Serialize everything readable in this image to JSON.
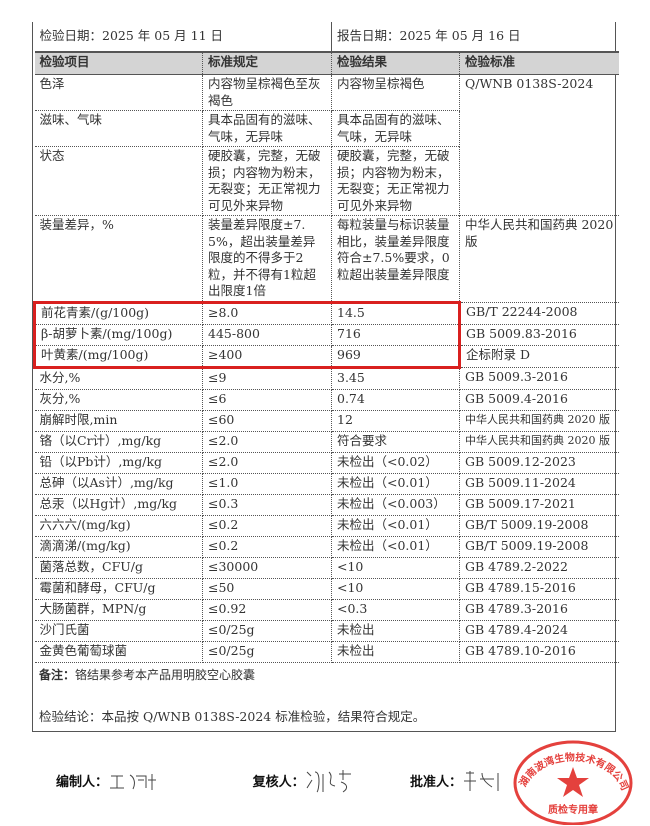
{
  "header": {
    "inspect_date": "检验日期：2025 年 05 月 11 日",
    "report_date": "报告日期：2025 年 05 月 16 日"
  },
  "columns": [
    "检验项目",
    "标准规定",
    "检验结果",
    "检验标准"
  ],
  "rows": [
    {
      "item": "色泽",
      "spec": "内容物呈棕褐色至灰褐色",
      "result": "内容物呈棕褐色",
      "standard": "Q/WNB 0138S-2024"
    },
    {
      "item": "滋味、气味",
      "spec": "具本品固有的滋味、气味，无异味",
      "result": "具本品固有的滋味、气味，无异味",
      "standard": ""
    },
    {
      "item": "状态",
      "spec": "硬胶囊，完整，无破损；内容物为粉末，无裂变；无正常视力可见外来异物",
      "result": "硬胶囊，完整，无破损；内容物为粉末，无裂变；无正常视力可见外来异物",
      "standard": ""
    },
    {
      "item": "装量差异，%",
      "spec": "装量差异限度±7.5%，超出装量差异限度的不得多于2粒，并不得有1粒超出限度1倍",
      "result": "每粒装量与标识装量相比，装量差异限度符合±7.5%要求，0粒超出装量差异限度",
      "standard": "中华人民共和国药典 2020 版"
    },
    {
      "item": "前花青素/(g/100g)",
      "spec": "≥8.0",
      "result": "14.5",
      "standard": "GB/T 22244-2008"
    },
    {
      "item": "β-胡萝卜素/(mg/100g)",
      "spec": "445-800",
      "result": "716",
      "standard": "GB 5009.83-2016"
    },
    {
      "item": "叶黄素/(mg/100g)",
      "spec": "≥400",
      "result": "969",
      "standard": "企标附录 D"
    },
    {
      "item": "水分,%",
      "spec": "≤9",
      "result": "3.45",
      "standard": "GB 5009.3-2016"
    },
    {
      "item": "灰分,%",
      "spec": "≤6",
      "result": "0.74",
      "standard": "GB 5009.4-2016"
    },
    {
      "item": "崩解时限,min",
      "spec": "≤60",
      "result": "12",
      "standard": "中华人民共和国药典 2020 版"
    },
    {
      "item": "铬（以Cr计）,mg/kg",
      "spec": "≤2.0",
      "result": "符合要求",
      "standard": "中华人民共和国药典 2020 版"
    },
    {
      "item": "铅（以Pb计）,mg/kg",
      "spec": "≤2.0",
      "result": "未检出（<0.02）",
      "standard": "GB 5009.12-2023"
    },
    {
      "item": "总砷（以As计）,mg/kg",
      "spec": "≤1.0",
      "result": "未检出（<0.01）",
      "standard": "GB 5009.11-2024"
    },
    {
      "item": "总汞（以Hg计）,mg/kg",
      "spec": "≤0.3",
      "result": "未检出（<0.003）",
      "standard": "GB 5009.17-2021"
    },
    {
      "item": "六六六/(mg/kg)",
      "spec": "≤0.2",
      "result": "未检出（<0.01）",
      "standard": "GB/T 5009.19-2008"
    },
    {
      "item": "滴滴涕/(mg/kg)",
      "spec": "≤0.2",
      "result": "未检出（<0.01）",
      "standard": "GB/T 5009.19-2008"
    },
    {
      "item": "菌落总数，CFU/g",
      "spec": "≤30000",
      "result": "<10",
      "standard": "GB 4789.2-2022"
    },
    {
      "item": "霉菌和酵母，CFU/g",
      "spec": "≤50",
      "result": "<10",
      "standard": "GB 4789.15-2016"
    },
    {
      "item": "大肠菌群，MPN/g",
      "spec": "≤0.92",
      "result": "<0.3",
      "standard": "GB 4789.3-2016"
    },
    {
      "item": "沙门氏菌",
      "spec": "≤0/25g",
      "result": "未检出",
      "standard": "GB 4789.4-2024"
    },
    {
      "item": "金黄色葡萄球菌",
      "spec": "≤0/25g",
      "result": "未检出",
      "standard": "GB 4789.10-2016"
    }
  ],
  "note": {
    "label": "备注：",
    "text": "铬结果参考本产品用明胶空心胶囊"
  },
  "conclusion": "检验结论：本品按 Q/WNB 0138S-2024 标准检验，结果符合规定。",
  "signatures": {
    "compiler": "编制人：",
    "reviewer": "复核人：",
    "approver": "批准人："
  },
  "stamp": {
    "text": "湖南波湾生物技术有限公司",
    "sub": "质检专用章",
    "color": "#e0201c"
  },
  "highlight_color": "#d9201f"
}
